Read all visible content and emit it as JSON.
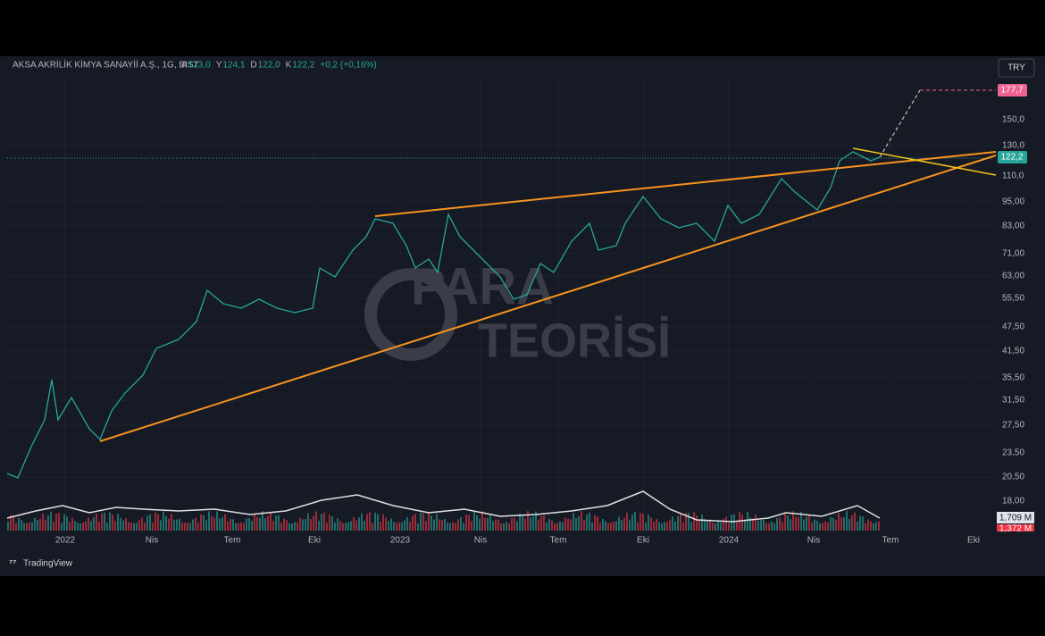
{
  "header": {
    "symbol": "AKSA AKRİLİK KİMYA SANAYİİ A.Ş., 1G, BIST",
    "ohlc": [
      {
        "label": "A",
        "value": "123,0"
      },
      {
        "label": "Y",
        "value": "124,1"
      },
      {
        "label": "D",
        "value": "122,0"
      },
      {
        "label": "K",
        "value": "122,2"
      }
    ],
    "change": "+0,2 (+0,16%)"
  },
  "currency_button": "TRY",
  "price_axis": {
    "labels": [
      "150,0",
      "130,0",
      "110,0",
      "95,00",
      "83,00",
      "71,00",
      "63,00",
      "55,50",
      "47,50",
      "41,50",
      "35,50",
      "31,50",
      "27,50",
      "23,50",
      "20,50",
      "18,00"
    ],
    "target_price": "177,7",
    "current_price": "122,2",
    "volume_labels": [
      "1,709 M",
      "1,372 M"
    ]
  },
  "time_axis": {
    "labels": [
      "2022",
      "Nis",
      "Tem",
      "Eki",
      "2023",
      "Nis",
      "Tem",
      "Eki",
      "2024",
      "Nis",
      "Tem",
      "Eki"
    ]
  },
  "watermark": [
    "PARA",
    "TEORİSİ"
  ],
  "footer": "TradingView"
}
